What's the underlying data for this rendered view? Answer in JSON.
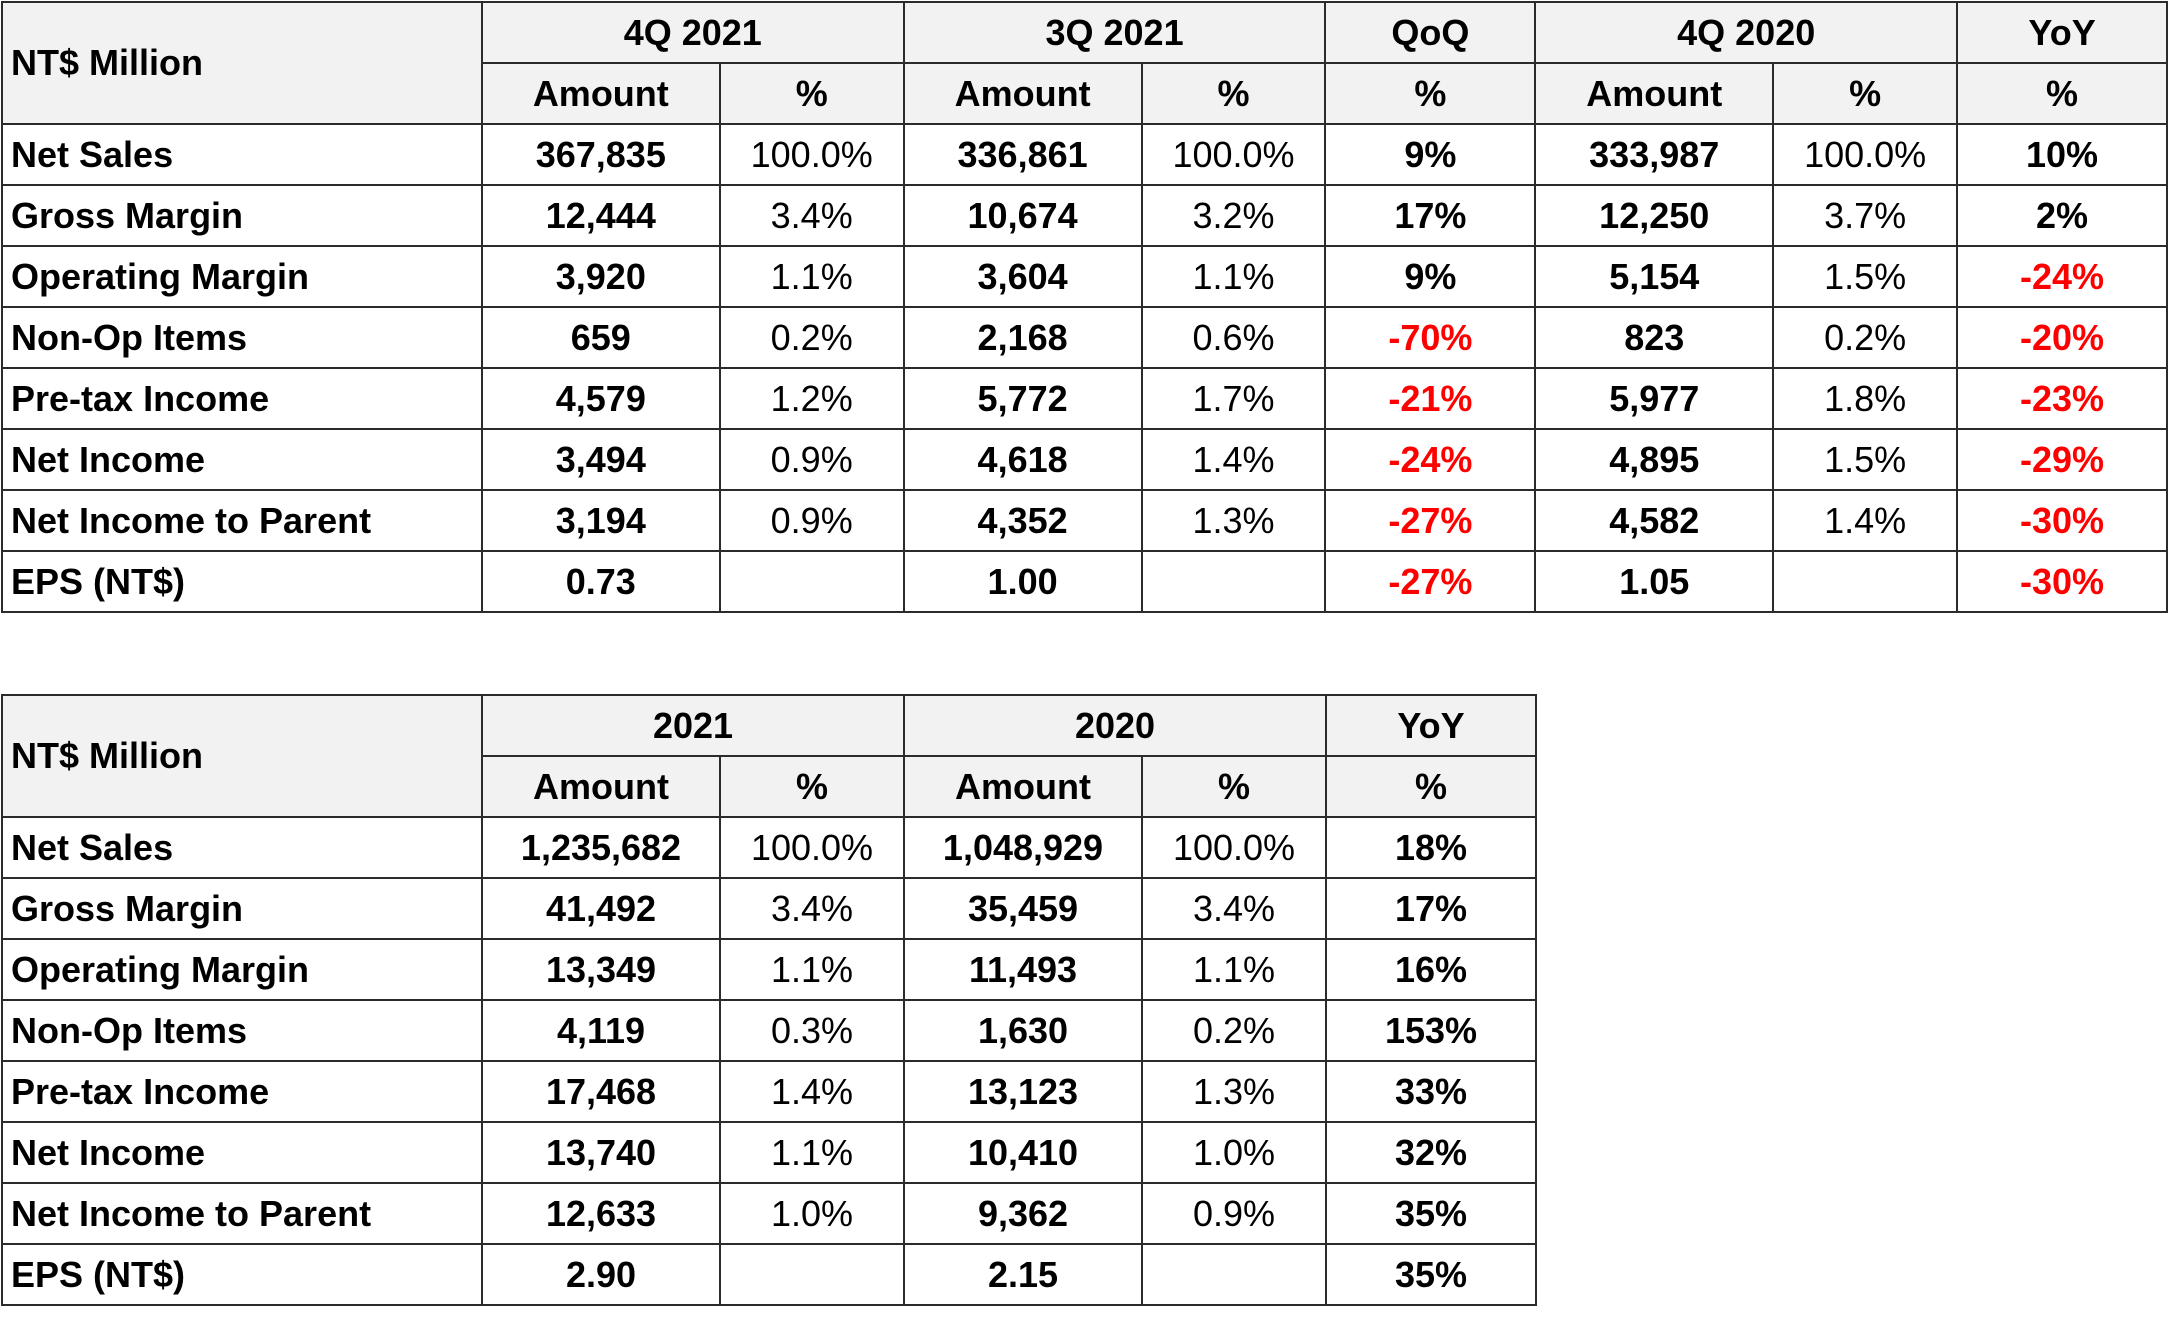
{
  "quarterly": {
    "corner": "NT$ Million",
    "periods": [
      "4Q 2021",
      "3Q 2021",
      "QoQ",
      "4Q 2020",
      "YoY"
    ],
    "subheaders": [
      "Amount",
      "%",
      "Amount",
      "%",
      "%",
      "Amount",
      "%",
      "%"
    ],
    "rows": [
      [
        "Net Sales",
        "367,835",
        "100.0%",
        "336,861",
        "100.0%",
        "9%",
        "333,987",
        "100.0%",
        "10%"
      ],
      [
        "Gross Margin",
        "12,444",
        "3.4%",
        "10,674",
        "3.2%",
        "17%",
        "12,250",
        "3.7%",
        "2%"
      ],
      [
        "Operating Margin",
        "3,920",
        "1.1%",
        "3,604",
        "1.1%",
        "9%",
        "5,154",
        "1.5%",
        "-24%"
      ],
      [
        "Non-Op Items",
        "659",
        "0.2%",
        "2,168",
        "0.6%",
        "-70%",
        "823",
        "0.2%",
        "-20%"
      ],
      [
        "Pre-tax Income",
        "4,579",
        "1.2%",
        "5,772",
        "1.7%",
        "-21%",
        "5,977",
        "1.8%",
        "-23%"
      ],
      [
        "Net Income",
        "3,494",
        "0.9%",
        "4,618",
        "1.4%",
        "-24%",
        "4,895",
        "1.5%",
        "-29%"
      ],
      [
        "Net Income to Parent",
        "3,194",
        "0.9%",
        "4,352",
        "1.3%",
        "-27%",
        "4,582",
        "1.4%",
        "-30%"
      ],
      [
        "EPS (NT$)",
        "0.73",
        "",
        "1.00",
        "",
        "-27%",
        "1.05",
        "",
        "-30%"
      ]
    ]
  },
  "annual": {
    "corner": "NT$ Million",
    "periods": [
      "2021",
      "2020",
      "YoY"
    ],
    "subheaders": [
      "Amount",
      "%",
      "Amount",
      "%",
      "%"
    ],
    "rows": [
      [
        "Net Sales",
        "1,235,682",
        "100.0%",
        "1,048,929",
        "100.0%",
        "18%"
      ],
      [
        "Gross Margin",
        "41,492",
        "3.4%",
        "35,459",
        "3.4%",
        "17%"
      ],
      [
        "Operating Margin",
        "13,349",
        "1.1%",
        "11,493",
        "1.1%",
        "16%"
      ],
      [
        "Non-Op Items",
        "4,119",
        "0.3%",
        "1,630",
        "0.2%",
        "153%"
      ],
      [
        "Pre-tax Income",
        "17,468",
        "1.4%",
        "13,123",
        "1.3%",
        "33%"
      ],
      [
        "Net Income",
        "13,740",
        "1.1%",
        "10,410",
        "1.0%",
        "32%"
      ],
      [
        "Net Income to Parent",
        "12,633",
        "1.0%",
        "9,362",
        "0.9%",
        "35%"
      ],
      [
        "EPS (NT$)",
        "2.90",
        "",
        "2.15",
        "",
        "35%"
      ]
    ]
  },
  "colors": {
    "header_bg": "#f2f2f2",
    "negative": "#ff0000",
    "border": "#2b2b2b"
  }
}
